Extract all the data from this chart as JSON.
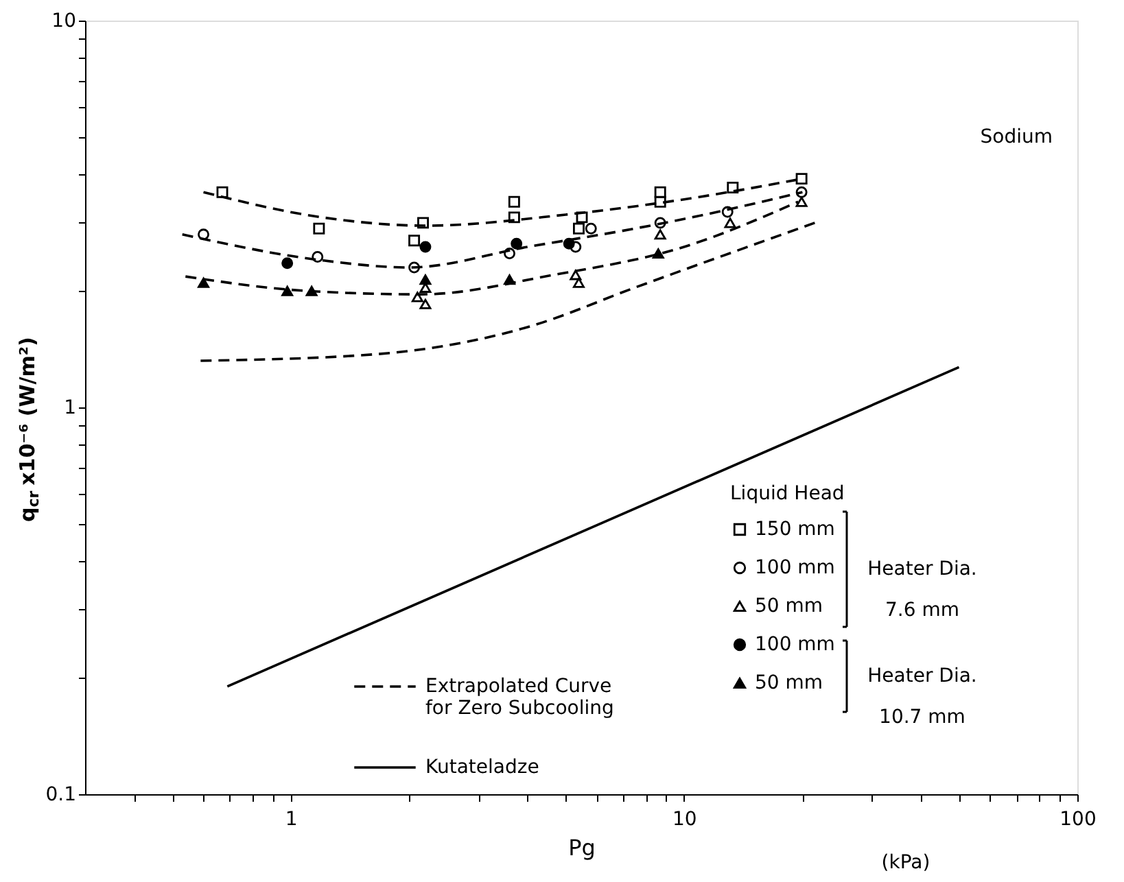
{
  "chart_data": {
    "type": "scatter",
    "xlabel": "Pg",
    "ylabel": "q$_{cr}$ x10⁻⁶ (W/m²)",
    "legend_title": "Liquid Head",
    "annotations": [
      "Sodium",
      "(kPa)",
      "Heater Dia.\n7.6 mm",
      "Heater Dia.\n10.7 mm"
    ],
    "log": "xy",
    "xlim": [
      0.3,
      100
    ],
    "ylim": [
      0.1,
      10
    ],
    "xticks": [
      {
        "value": 0.4,
        "label": null
      },
      {
        "value": 0.5,
        "label": null
      },
      {
        "value": 0.6,
        "label": null
      },
      {
        "value": 0.7,
        "label": null
      },
      {
        "value": 0.8,
        "label": null
      },
      {
        "value": 0.9,
        "label": null
      },
      1,
      {
        "value": 2,
        "label": null
      },
      {
        "value": 3,
        "label": null
      },
      {
        "value": 4,
        "label": null
      },
      {
        "value": 5,
        "label": null
      },
      {
        "value": 6,
        "label": null
      },
      {
        "value": 7,
        "label": null
      },
      {
        "value": 8,
        "label": null
      },
      {
        "value": 9,
        "label": null
      },
      10,
      {
        "value": 20,
        "label": null
      },
      {
        "value": 30,
        "label": null
      },
      {
        "value": 40,
        "label": null
      },
      {
        "value": 50,
        "label": null
      },
      {
        "value": 60,
        "label": null
      },
      {
        "value": 70,
        "label": null
      },
      {
        "value": 80,
        "label": null
      },
      {
        "value": 90,
        "label": null
      },
      100
    ],
    "yticks": [
      0.1,
      {
        "value": 0.2,
        "label": null
      },
      {
        "value": 0.3,
        "label": null
      },
      {
        "value": 0.4,
        "label": null
      },
      {
        "value": 0.5,
        "label": null
      },
      {
        "value": 0.6,
        "label": null
      },
      {
        "value": 0.7,
        "label": null
      },
      {
        "value": 0.8,
        "label": null
      },
      {
        "value": 0.9,
        "label": null
      },
      1,
      {
        "value": 2,
        "label": null
      },
      {
        "value": 3,
        "label": null
      },
      {
        "value": 4,
        "label": null
      },
      {
        "value": 5,
        "label": null
      },
      {
        "value": 6,
        "label": null
      },
      {
        "value": 7,
        "label": null
      },
      {
        "value": 8,
        "label": null
      },
      {
        "value": 9,
        "label": null
      },
      10
    ],
    "grid": false,
    "legend": "bottom right",
    "series": [
      {
        "name": "150 mm",
        "type": "scatter",
        "marker": "square-open",
        "color": "#000000",
        "x": [
          0.67,
          1.18,
          2.17,
          2.06,
          3.7,
          3.7,
          5.5,
          5.4,
          8.7,
          8.7,
          13.3,
          19.9
        ],
        "values": [
          3.6,
          2.9,
          3.0,
          2.7,
          3.4,
          3.1,
          3.1,
          2.9,
          3.6,
          3.4,
          3.7,
          3.9
        ]
      },
      {
        "name": "100 mm",
        "type": "scatter",
        "marker": "circle-open",
        "color": "#000000",
        "x": [
          0.6,
          1.17,
          2.06,
          3.6,
          5.3,
          5.8,
          8.7,
          12.9,
          19.9
        ],
        "values": [
          2.8,
          2.45,
          2.3,
          2.5,
          2.6,
          2.9,
          3.0,
          3.2,
          3.6
        ]
      },
      {
        "name": "50 mm",
        "type": "scatter",
        "marker": "triangle-open",
        "color": "#000000",
        "x": [
          2.1,
          2.2,
          2.2,
          5.3,
          5.4,
          8.7,
          13.1,
          19.9
        ],
        "values": [
          1.93,
          1.85,
          2.04,
          2.2,
          2.1,
          2.8,
          3.0,
          3.4
        ]
      },
      {
        "name": "100 mm",
        "type": "scatter",
        "marker": "circle",
        "color": "#000000",
        "x": [
          0.98,
          2.2,
          3.75,
          5.1
        ],
        "values": [
          2.36,
          2.6,
          2.65,
          2.65
        ]
      },
      {
        "name": "50 mm",
        "type": "scatter",
        "marker": "triangle",
        "color": "#000000",
        "x": [
          0.6,
          0.98,
          1.13,
          2.2,
          3.6,
          8.6
        ],
        "values": [
          2.1,
          2.0,
          2.0,
          2.14,
          2.14,
          2.5
        ]
      },
      {
        "type": "line",
        "line_style": "dashed",
        "color": "#000000",
        "x": [
          0.6,
          1.2,
          2.2,
          5,
          10,
          20
        ],
        "values": [
          3.6,
          3.1,
          2.95,
          3.15,
          3.45,
          3.9
        ]
      },
      {
        "type": "line",
        "line_style": "dashed",
        "color": "#000000",
        "x": [
          0.53,
          1.2,
          2.0,
          4,
          7.5,
          10,
          20
        ],
        "values": [
          2.8,
          2.4,
          2.3,
          2.6,
          2.9,
          3.07,
          3.6
        ]
      },
      {
        "type": "line",
        "line_style": "dashed",
        "color": "#000000",
        "x": [
          0.54,
          1.1,
          2.15,
          4.65,
          10,
          19.5
        ],
        "values": [
          2.18,
          2.0,
          1.96,
          2.2,
          2.6,
          3.4
        ]
      },
      {
        "name": "Extrapolated Curve\nfor Zero Subcooling",
        "type": "line",
        "line_style": "dashed",
        "color": "#000000",
        "x": [
          0.59,
          1.61,
          4.06,
          7.5,
          21.5
        ],
        "values": [
          1.32,
          1.37,
          1.62,
          2.04,
          3.0
        ]
      },
      {
        "name": "Kutateladze",
        "type": "line",
        "line_style": "solid",
        "color": "#000000",
        "x": [
          0.69,
          50
        ],
        "values": [
          0.19,
          1.27
        ]
      }
    ]
  }
}
